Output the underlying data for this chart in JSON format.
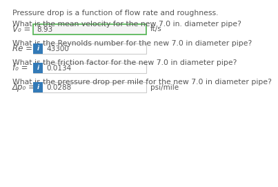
{
  "bg_color": "#ffffff",
  "intro_text": "Pressure drop is a function of flow rate and roughness.",
  "questions": [
    {
      "question": "What is the mean velocity for the new 7.0 in. diameter pipe?",
      "label": "V₀ =",
      "value": "8.93",
      "unit": "ft/s",
      "show_icon": false,
      "icon_color": "#2196f3",
      "box_border": "#5cb85c",
      "box_bg": "#f5f5f5"
    },
    {
      "question": "What is the Reynolds number for the new 7.0 in diameter pipe?",
      "label": "Re =",
      "value": "43300",
      "unit": "",
      "show_icon": true,
      "icon_color": "#337ab7",
      "box_border": "#cccccc",
      "box_bg": "#ffffff"
    },
    {
      "question": "What is the friction factor for the new 7.0 in diameter pipe?",
      "label": "f₀ =",
      "value": "0.0134",
      "unit": "",
      "show_icon": true,
      "icon_color": "#337ab7",
      "box_border": "#cccccc",
      "box_bg": "#ffffff"
    },
    {
      "question": "What is the pressure drop per mile for the new 7.0 in diameter pipe?",
      "label": "Δp₀ =",
      "value": "0.0288",
      "unit": "psi/mile",
      "show_icon": true,
      "icon_color": "#337ab7",
      "box_border": "#cccccc",
      "box_bg": "#ffffff"
    }
  ],
  "text_color": "#555555",
  "font_size": 7.5,
  "label_font_size": 8.5,
  "question_font_size": 7.8,
  "intro_font_size": 7.8
}
